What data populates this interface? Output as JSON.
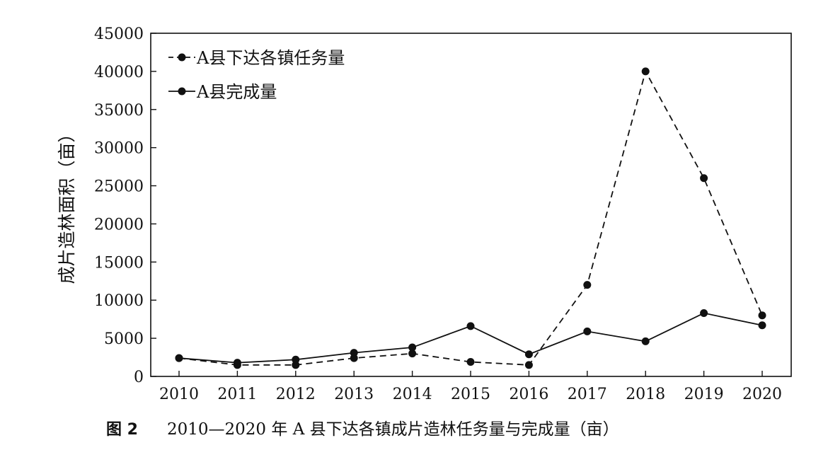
{
  "chart_data": {
    "type": "line",
    "x": [
      "2010",
      "2011",
      "2012",
      "2013",
      "2014",
      "2015",
      "2016",
      "2017",
      "2018",
      "2019",
      "2020"
    ],
    "ylabel": "成片造林面积（亩）",
    "xlabel": "",
    "ylim": [
      0,
      45000
    ],
    "yticks": [
      "0",
      "5000",
      "10000",
      "15000",
      "20000",
      "25000",
      "30000",
      "35000",
      "40000",
      "45000"
    ],
    "series": [
      {
        "name": "A县下达各镇任务量",
        "style": "dashed",
        "values": [
          2400,
          1500,
          1500,
          2400,
          3000,
          1900,
          1500,
          12000,
          40000,
          26000,
          8000
        ]
      },
      {
        "name": "A县完成量",
        "style": "solid",
        "values": [
          2400,
          1800,
          2200,
          3100,
          3800,
          6600,
          2900,
          5900,
          4600,
          8300,
          6700
        ]
      }
    ],
    "legend": "top-left",
    "grid": false
  },
  "caption": {
    "prefix": "图 2",
    "text": "2010—2020 年 A 县下达各镇成片造林任务量与完成量（亩）"
  }
}
